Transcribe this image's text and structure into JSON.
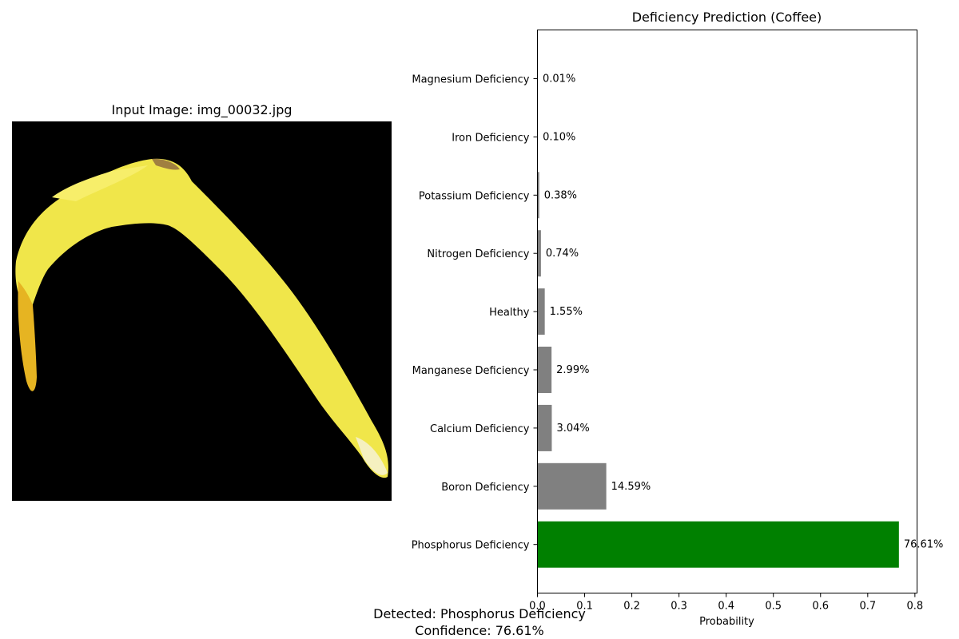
{
  "left_panel": {
    "title": "Input Image: img_00032.jpg"
  },
  "chart_data": {
    "type": "bar",
    "orientation": "horizontal",
    "title": "Deficiency Prediction (Coffee)",
    "xlabel": "Probability",
    "ylabel": "",
    "xlim": [
      0,
      0.8
    ],
    "xticks": [
      "0.0",
      "0.1",
      "0.2",
      "0.3",
      "0.4",
      "0.5",
      "0.6",
      "0.7",
      "0.8"
    ],
    "grid": false,
    "categories": [
      "Magnesium Deficiency",
      "Iron Deficiency",
      "Potassium Deficiency",
      "Nitrogen Deficiency",
      "Healthy",
      "Manganese Deficiency",
      "Calcium Deficiency",
      "Boron Deficiency",
      "Phosphorus Deficiency"
    ],
    "values": [
      0.0001,
      0.001,
      0.0038,
      0.0074,
      0.0155,
      0.0299,
      0.0304,
      0.1459,
      0.7661
    ],
    "value_labels": [
      "0.01%",
      "0.10%",
      "0.38%",
      "0.74%",
      "1.55%",
      "2.99%",
      "3.04%",
      "14.59%",
      "76.61%"
    ],
    "highlight_index": 8,
    "colors": {
      "default": "#808080",
      "highlight": "#008000"
    }
  },
  "footer": {
    "detected": "Detected: Phosphorus Deficiency",
    "confidence": "Confidence: 76.61%"
  }
}
